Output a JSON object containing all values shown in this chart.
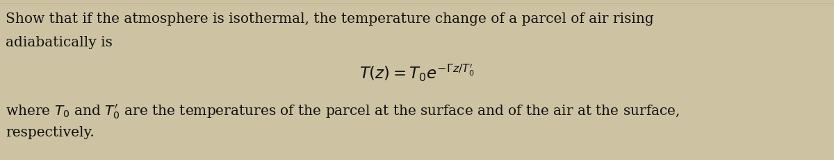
{
  "figsize": [
    12.0,
    2.31
  ],
  "dpi": 100,
  "background_color": "#cdc3a2",
  "line1": "Show that if the atmosphere is isothermal, the temperature change of a parcel of air rising",
  "line2": "adiabatically is",
  "formula": "$T(z) = T_0e^{-\\Gamma z/T_0^{\\prime}}$",
  "line3": "where $T_0$ and $T_0^{\\prime}$ are the temperatures of the parcel at the surface and of the air at the surface,",
  "line4": "respectively.",
  "text_color": "#111111",
  "ghost_color": "#9a8f70",
  "font_size_body": 14.5,
  "font_size_formula": 16.5
}
